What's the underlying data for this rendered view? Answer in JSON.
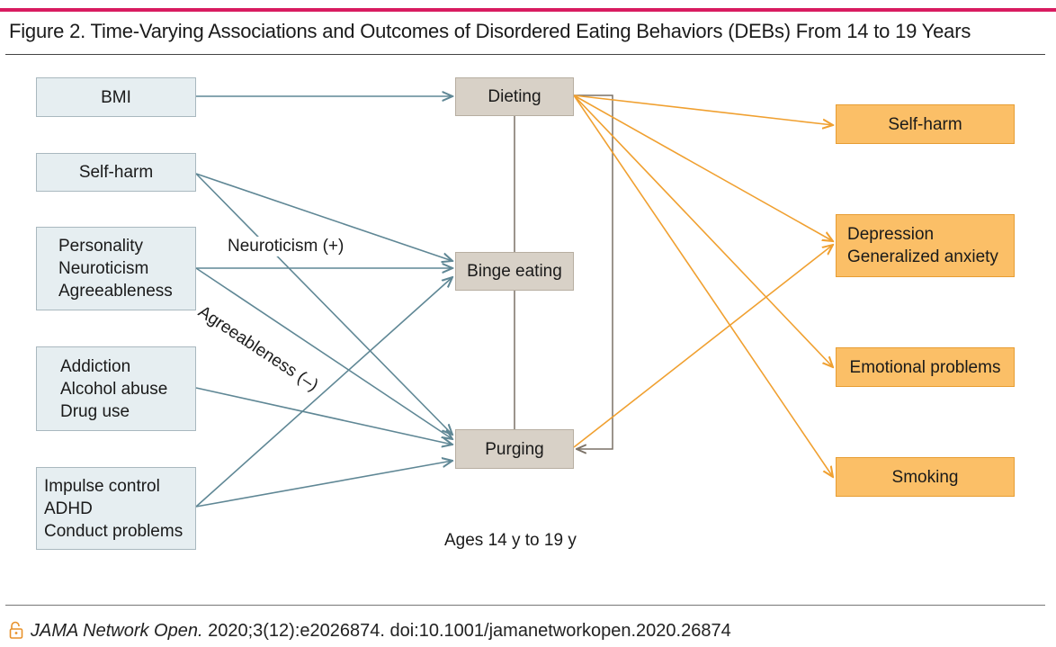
{
  "figure": {
    "title": "Figure 2. Time-Varying Associations and Outcomes of Disordered Eating Behaviors (DEBs) From 14 to 19 Years"
  },
  "predictors": {
    "bmi": "BMI",
    "self_harm": "Self-harm",
    "personality": [
      "Personality",
      "Neuroticism",
      "Agreeableness"
    ],
    "addiction": [
      "Addiction",
      "Alcohol abuse",
      "Drug use"
    ],
    "impulse": [
      "Impulse control",
      "ADHD",
      "Conduct problems"
    ]
  },
  "debs": {
    "dieting": "Dieting",
    "binge": "Binge eating",
    "purging": "Purging",
    "age_label": "Ages 14 y to 19 y"
  },
  "edge_labels": {
    "neuroticism": "Neuroticism (+)",
    "agreeableness": "Agreeableness (–)"
  },
  "outcomes": {
    "self_harm": "Self-harm",
    "depression": [
      "Depression",
      "Generalized anxiety"
    ],
    "emotional": "Emotional problems",
    "smoking": "Smoking"
  },
  "colors": {
    "predictor_arrow": "#5f8795",
    "outcome_arrow": "#f0a030",
    "connector": "#7a7166"
  },
  "icons": {
    "open_access": "lock-open-icon"
  },
  "footer": {
    "journal": "JAMA Network Open.",
    "citation": " 2020;3(12):e2026874. doi:10.1001/jamanetworkopen.2020.26874"
  }
}
